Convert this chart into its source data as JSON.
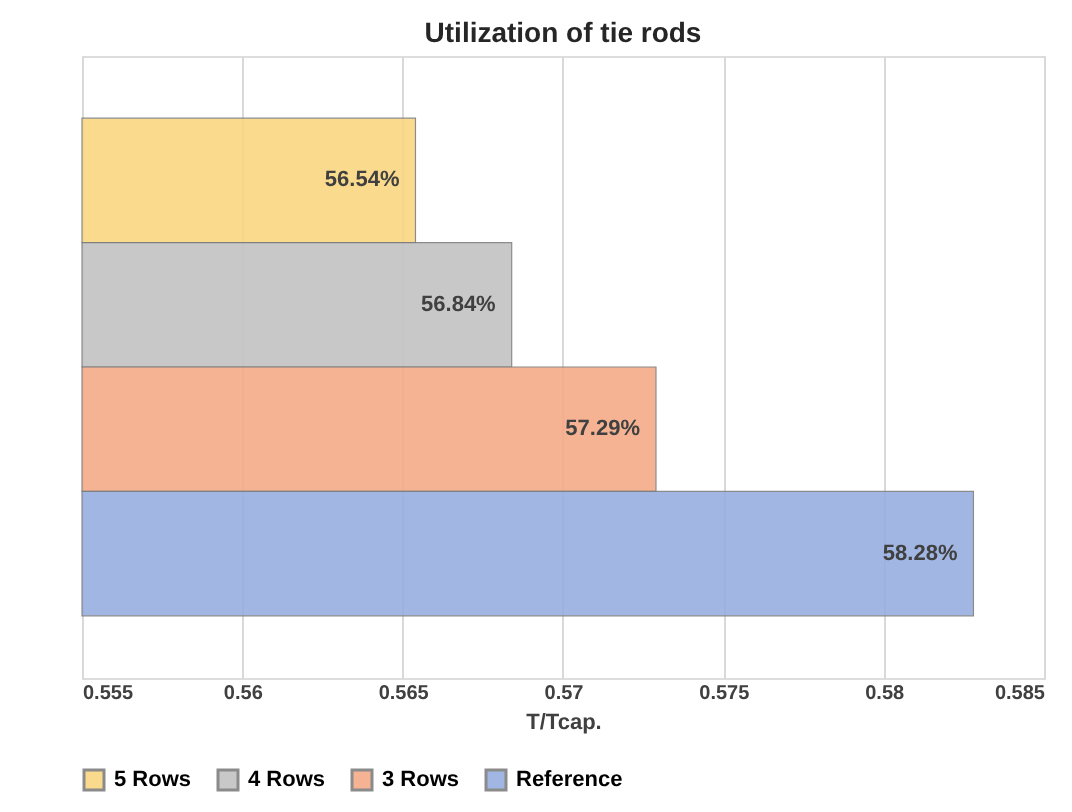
{
  "chart_data": {
    "type": "bar",
    "orientation": "horizontal",
    "title": "Utilization of tie rods",
    "xlabel": "T/Tcap.",
    "categories": [
      null
    ],
    "series": [
      {
        "name": "5 Rows",
        "color": "#fad680",
        "values": [
          0.5654
        ],
        "value_labels": [
          "56.54%"
        ]
      },
      {
        "name": "4 Rows",
        "color": "#c3c3c3",
        "values": [
          0.5684
        ],
        "value_labels": [
          "56.84%"
        ]
      },
      {
        "name": "3 Rows",
        "color": "#f4ab88",
        "values": [
          0.5729
        ],
        "value_labels": [
          "57.29%"
        ]
      },
      {
        "name": "Reference",
        "color": "#97afe0",
        "values": [
          0.5828
        ],
        "value_labels": [
          "58.28%"
        ]
      }
    ],
    "xlim": [
      0.555,
      0.585
    ],
    "xticks": [
      0.555,
      0.56,
      0.565,
      0.57,
      0.575,
      0.58,
      0.585
    ],
    "grid": "x",
    "legend": "bottom",
    "tick_labels": "x"
  }
}
